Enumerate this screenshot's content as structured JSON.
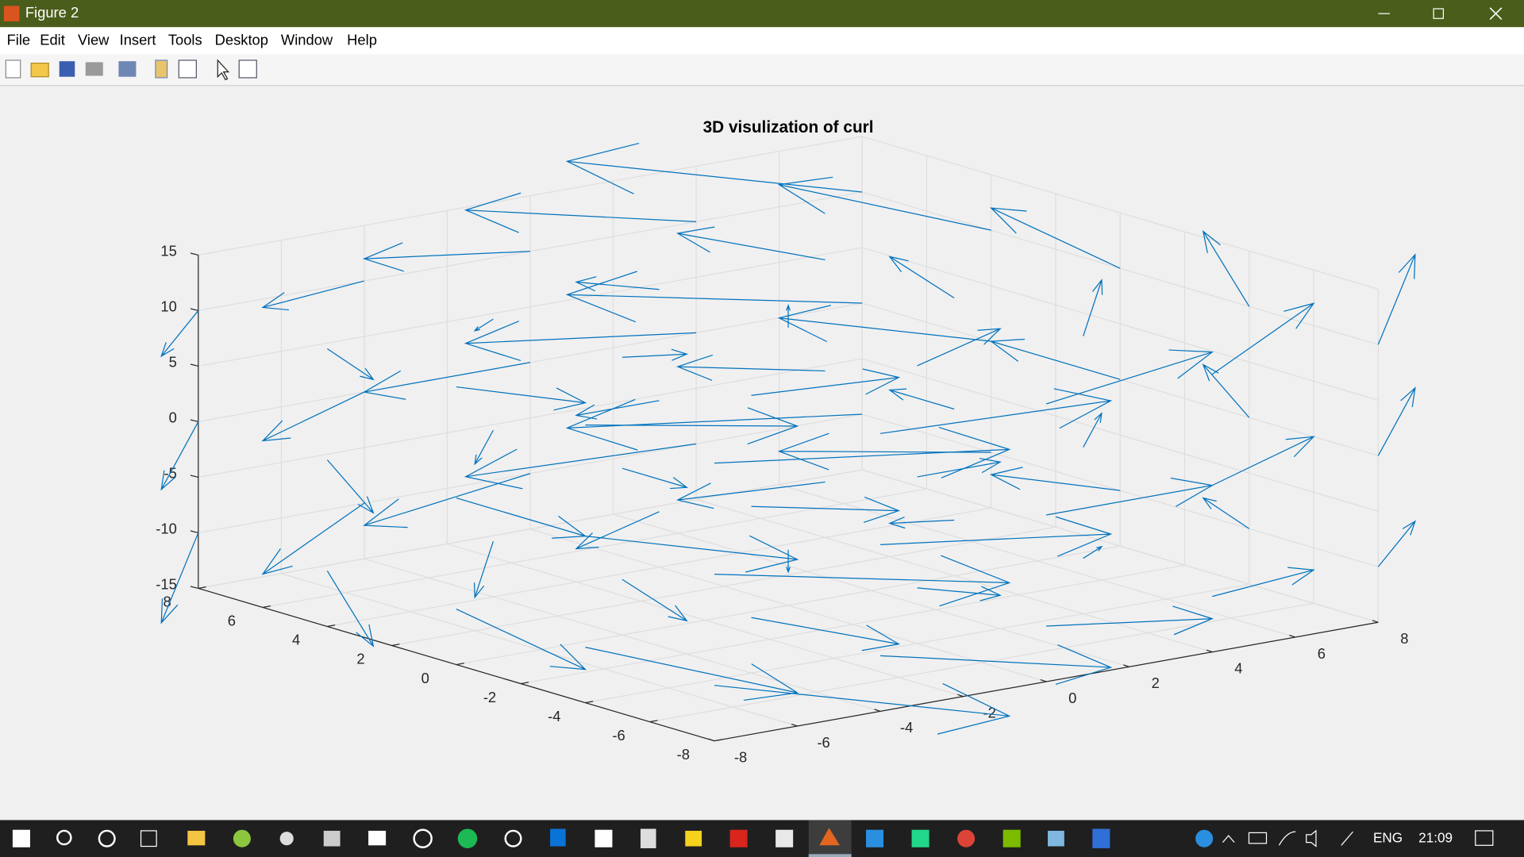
{
  "window": {
    "title": "Figure 2",
    "menu": [
      "File",
      "Edit",
      "View",
      "Insert",
      "Tools",
      "Desktop",
      "Window",
      "Help"
    ]
  },
  "taskbar": {
    "language": "ENG",
    "time": "21:09"
  },
  "chart_data": {
    "type": "quiver3",
    "title": "3D visulization of curl",
    "color": "#0072bd",
    "grid": true,
    "xlim": [
      -8,
      8
    ],
    "ylim": [
      -8,
      8
    ],
    "zlim": [
      -15,
      15
    ],
    "xticks": [
      -8,
      -6,
      -4,
      -2,
      0,
      2,
      4,
      6,
      8
    ],
    "yticks": [
      -8,
      -6,
      -4,
      -2,
      0,
      2,
      4,
      6,
      8
    ],
    "zticks": [
      -15,
      -10,
      -5,
      0,
      5,
      10,
      15
    ],
    "vectors": [
      [
        -8,
        -8,
        -10,
        8,
        -8,
        -4
      ],
      [
        -4,
        -8,
        -10,
        8,
        -4,
        -4
      ],
      [
        0,
        -8,
        -10,
        8,
        0,
        -4
      ],
      [
        4,
        -8,
        -10,
        8,
        4,
        -4
      ],
      [
        8,
        -8,
        -10,
        8,
        8,
        -4
      ],
      [
        -8,
        -4,
        -10,
        4,
        -8,
        -4
      ],
      [
        -4,
        -4,
        -10,
        4,
        -4,
        -4
      ],
      [
        0,
        -4,
        -10,
        4,
        0,
        -4
      ],
      [
        4,
        -4,
        -10,
        4,
        4,
        -4
      ],
      [
        8,
        -4,
        -10,
        4,
        8,
        -4
      ],
      [
        -8,
        0,
        -10,
        0,
        -8,
        -4
      ],
      [
        -4,
        0,
        -10,
        0,
        -4,
        -4
      ],
      [
        0,
        0,
        -10,
        0,
        0,
        -4
      ],
      [
        4,
        0,
        -10,
        0,
        4,
        -4
      ],
      [
        8,
        0,
        -10,
        0,
        8,
        -4
      ],
      [
        -8,
        4,
        -10,
        -4,
        -8,
        -4
      ],
      [
        -4,
        4,
        -10,
        -4,
        -4,
        -4
      ],
      [
        0,
        4,
        -10,
        -4,
        0,
        -4
      ],
      [
        4,
        4,
        -10,
        -4,
        4,
        -4
      ],
      [
        8,
        4,
        -10,
        -4,
        8,
        -4
      ],
      [
        -8,
        8,
        -10,
        -8,
        -8,
        -4
      ],
      [
        -4,
        8,
        -10,
        -8,
        -4,
        -4
      ],
      [
        0,
        8,
        -10,
        -8,
        0,
        -4
      ],
      [
        4,
        8,
        -10,
        -8,
        4,
        -4
      ],
      [
        8,
        8,
        -10,
        -8,
        8,
        -4
      ],
      [
        -8,
        -8,
        0,
        8,
        -8,
        0
      ],
      [
        -4,
        -8,
        0,
        8,
        -4,
        0
      ],
      [
        0,
        -8,
        0,
        8,
        0,
        0
      ],
      [
        4,
        -8,
        0,
        8,
        4,
        0
      ],
      [
        8,
        -8,
        0,
        8,
        8,
        0
      ],
      [
        -8,
        -4,
        0,
        4,
        -8,
        0
      ],
      [
        -4,
        -4,
        0,
        4,
        -4,
        0
      ],
      [
        0,
        -4,
        0,
        4,
        0,
        0
      ],
      [
        4,
        -4,
        0,
        4,
        4,
        0
      ],
      [
        8,
        -4,
        0,
        4,
        8,
        0
      ],
      [
        -8,
        0,
        0,
        0,
        -8,
        0
      ],
      [
        -4,
        0,
        0,
        0,
        -4,
        0
      ],
      [
        0,
        0,
        0,
        0,
        0,
        0
      ],
      [
        4,
        0,
        0,
        0,
        4,
        0
      ],
      [
        8,
        0,
        0,
        0,
        8,
        0
      ],
      [
        -8,
        4,
        0,
        -4,
        -8,
        0
      ],
      [
        -4,
        4,
        0,
        -4,
        -4,
        0
      ],
      [
        0,
        4,
        0,
        -4,
        0,
        0
      ],
      [
        4,
        4,
        0,
        -4,
        4,
        0
      ],
      [
        8,
        4,
        0,
        -4,
        8,
        0
      ],
      [
        -8,
        8,
        0,
        -8,
        -8,
        0
      ],
      [
        -4,
        8,
        0,
        -8,
        -4,
        0
      ],
      [
        0,
        8,
        0,
        -8,
        0,
        0
      ],
      [
        4,
        8,
        0,
        -8,
        4,
        0
      ],
      [
        8,
        8,
        0,
        -8,
        8,
        0
      ],
      [
        -8,
        -8,
        10,
        8,
        -8,
        4
      ],
      [
        -4,
        -8,
        10,
        8,
        -4,
        4
      ],
      [
        0,
        -8,
        10,
        8,
        0,
        4
      ],
      [
        4,
        -8,
        10,
        8,
        4,
        4
      ],
      [
        8,
        -8,
        10,
        8,
        8,
        4
      ],
      [
        -8,
        -4,
        10,
        4,
        -8,
        4
      ],
      [
        -4,
        -4,
        10,
        4,
        -4,
        4
      ],
      [
        0,
        -4,
        10,
        4,
        0,
        4
      ],
      [
        4,
        -4,
        10,
        4,
        4,
        4
      ],
      [
        8,
        -4,
        10,
        4,
        8,
        4
      ],
      [
        -8,
        0,
        10,
        0,
        -8,
        4
      ],
      [
        -4,
        0,
        10,
        0,
        -4,
        4
      ],
      [
        0,
        0,
        10,
        0,
        0,
        4
      ],
      [
        4,
        0,
        10,
        0,
        4,
        4
      ],
      [
        8,
        0,
        10,
        0,
        8,
        4
      ],
      [
        -8,
        4,
        10,
        -4,
        -8,
        4
      ],
      [
        -4,
        4,
        10,
        -4,
        -4,
        4
      ],
      [
        0,
        4,
        10,
        -4,
        0,
        4
      ],
      [
        4,
        4,
        10,
        -4,
        4,
        4
      ],
      [
        8,
        4,
        10,
        -4,
        8,
        4
      ],
      [
        -8,
        8,
        10,
        -8,
        -8,
        4
      ],
      [
        -4,
        8,
        10,
        -8,
        -4,
        4
      ],
      [
        0,
        8,
        10,
        -8,
        0,
        4
      ],
      [
        4,
        8,
        10,
        -8,
        4,
        4
      ],
      [
        8,
        8,
        10,
        -8,
        8,
        4
      ]
    ]
  }
}
